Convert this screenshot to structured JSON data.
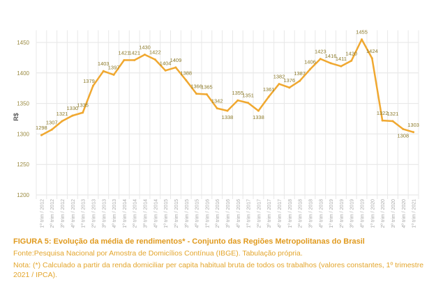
{
  "chart_data": {
    "type": "line",
    "title": "FIGURA 5: Evolução da média de rendimentos* - Conjunto das Regiões Metropolitanas do Brasil",
    "ylabel": "R$",
    "xlabel": "",
    "ylim": [
      1200,
      1470
    ],
    "yticks": [
      1200,
      1250,
      1300,
      1350,
      1400,
      1450
    ],
    "grid": true,
    "line_color": "#f0a830",
    "categories": [
      "1º trim / 2012",
      "2º trim / 2012",
      "3º trim / 2012",
      "4º trim / 2012",
      "1º trim / 2013",
      "2º trim / 2013",
      "3º trim / 2013",
      "4º trim / 2013",
      "1º trim / 2014",
      "2º trim / 2014",
      "3º trim / 2014",
      "4º trim / 2014",
      "1º trim / 2015",
      "2º trim / 2015",
      "3º trim / 2015",
      "4º trim / 2015",
      "1º trim / 2016",
      "2º trim / 2016",
      "3º trim / 2016",
      "4º trim / 2016",
      "1º trim / 2017",
      "2º trim / 2017",
      "3º trim / 2017",
      "4º trim / 2017",
      "1º trim / 2018",
      "2º trim / 2018",
      "3º trim / 2018",
      "4º trim / 2018",
      "1º trim / 2019",
      "2º trim / 2019",
      "3º trim / 2019",
      "4º trim / 2019",
      "1º trim / 2020",
      "2º trim / 2020",
      "3º trim / 2020",
      "4º trim / 2020",
      "1º trim / 2021"
    ],
    "values": [
      1298,
      1307,
      1321,
      1330,
      1335,
      1379,
      1403,
      1397,
      1421,
      1421,
      1430,
      1422,
      1404,
      1409,
      1388,
      1366,
      1365,
      1342,
      1338,
      1355,
      1351,
      1338,
      1361,
      1382,
      1376,
      1387,
      1406,
      1423,
      1416,
      1411,
      1420,
      1455,
      1424,
      1322,
      1321,
      1308,
      1303
    ]
  },
  "caption": {
    "source": "Fonte:Pesquisa Nacional por Amostra de Domicílios Contínua (IBGE). Tabulação própria.",
    "note": "Nota: (*) Calculado a partir da renda domiciliar per capita habitual bruta de todos os trabalhos (valores constantes, 1º trimestre 2021 / IPCA)."
  }
}
